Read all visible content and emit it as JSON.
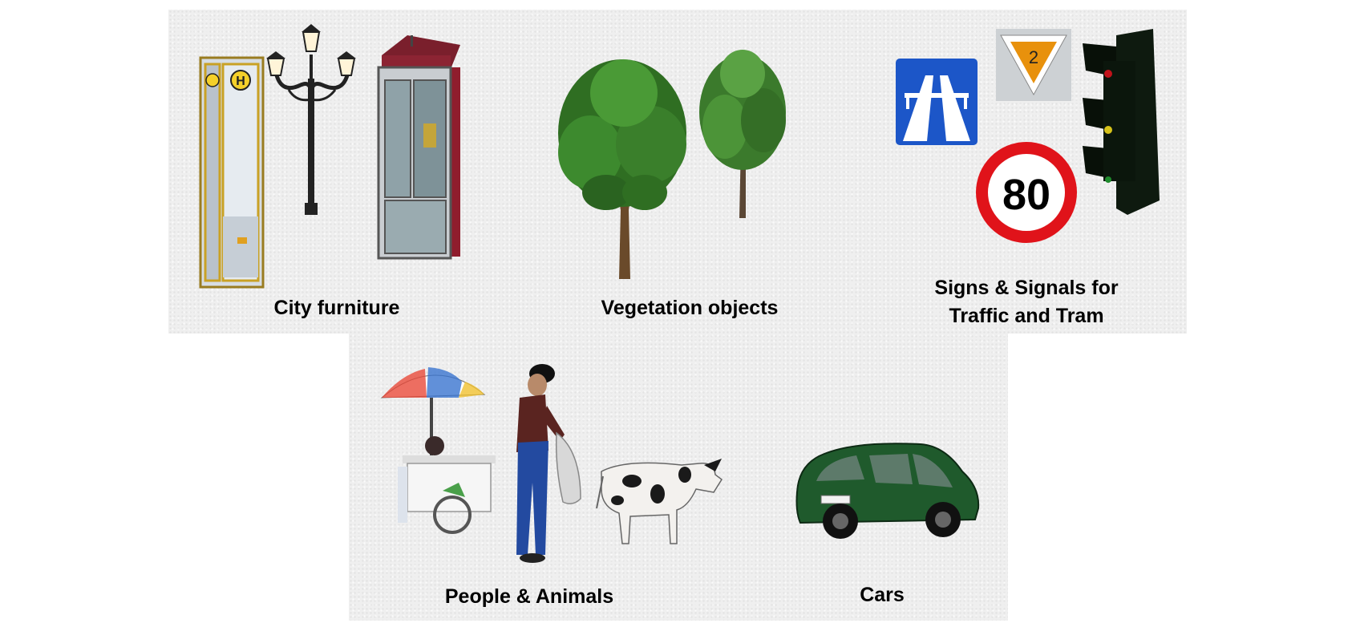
{
  "categories": {
    "city_furniture": {
      "label": "City furniture"
    },
    "vegetation": {
      "label": "Vegetation objects"
    },
    "signs": {
      "label_line1": "Signs & Signals for",
      "label_line2": "Traffic and Tram"
    },
    "people": {
      "label": "People & Animals"
    },
    "cars": {
      "label": "Cars"
    }
  },
  "sign_texts": {
    "priority_number": "2",
    "speed_limit": "80",
    "bus_stop_letter": "H"
  },
  "colors": {
    "motorway_blue": "#1c56c8",
    "priority_orange": "#e8910c",
    "speed_red": "#e0131a",
    "foliage_green": "#2f6e22",
    "car_green": "#1f5a2c"
  }
}
